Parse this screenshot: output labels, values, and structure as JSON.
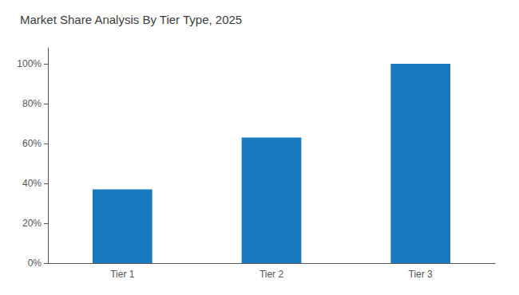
{
  "chart_data": {
    "type": "bar",
    "title": "Market Share Analysis By Tier Type, 2025",
    "categories": [
      "Tier 1",
      "Tier 2",
      "Tier 3"
    ],
    "values": [
      37,
      63,
      100
    ],
    "color": "#1a7abf",
    "ylim": [
      0,
      108
    ],
    "yticks": [
      {
        "value": 0,
        "label": "0%"
      },
      {
        "value": 20,
        "label": "20%"
      },
      {
        "value": 40,
        "label": "40%"
      },
      {
        "value": 60,
        "label": "60%"
      },
      {
        "value": 80,
        "label": "80%"
      },
      {
        "value": 100,
        "label": "100%"
      }
    ],
    "grid": false
  }
}
